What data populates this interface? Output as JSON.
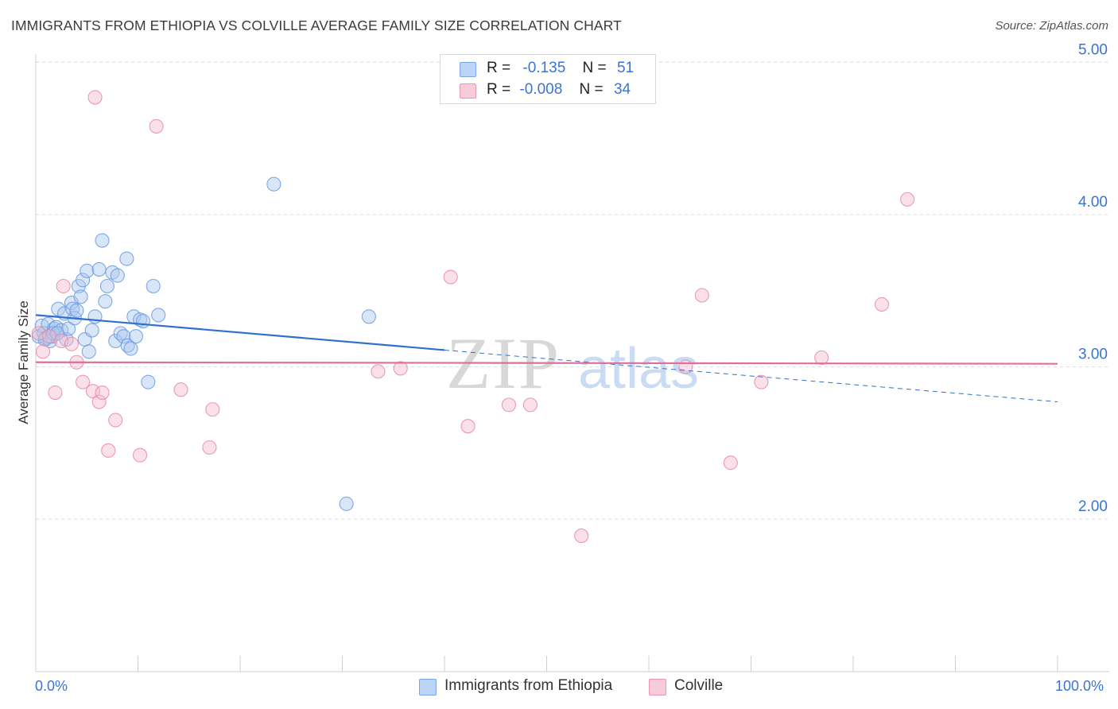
{
  "title": "IMMIGRANTS FROM ETHIOPIA VS COLVILLE AVERAGE FAMILY SIZE CORRELATION CHART",
  "source": "Source: ZipAtlas.com",
  "watermark": {
    "zip": "ZIP",
    "atlas": "atlas"
  },
  "legend": [
    {
      "r_label": "R =",
      "r_value": "-0.135",
      "n_label": "N =",
      "n_value": "51"
    },
    {
      "r_label": "R =",
      "r_value": "-0.008",
      "n_label": "N =",
      "n_value": "34"
    }
  ],
  "chart_data": {
    "type": "scatter",
    "title": "IMMIGRANTS FROM ETHIOPIA VS COLVILLE AVERAGE FAMILY SIZE CORRELATION CHART",
    "xlabel": "",
    "ylabel": "Average Family Size",
    "xlim": [
      0,
      100
    ],
    "ylim": [
      1.0,
      5.1
    ],
    "x_tick_labels": [
      "0.0%",
      "100.0%"
    ],
    "y_ticks": [
      2.0,
      3.0,
      4.0,
      5.0
    ],
    "y_tick_labels": [
      "2.00",
      "3.00",
      "4.00",
      "5.00"
    ],
    "grid": true,
    "series": [
      {
        "name": "Immigrants from Ethiopia",
        "color": "#6a9be0",
        "fill": "#aac8f0",
        "trend": {
          "x0": 0,
          "y0": 3.34,
          "x1": 40,
          "y1": 3.11,
          "dash_to_x": 100,
          "dash_to_y": 2.77
        },
        "points": [
          [
            0.3,
            3.2
          ],
          [
            0.6,
            3.27
          ],
          [
            0.8,
            3.22
          ],
          [
            1.0,
            3.19
          ],
          [
            1.2,
            3.28
          ],
          [
            1.4,
            3.17
          ],
          [
            1.6,
            3.2
          ],
          [
            1.8,
            3.25
          ],
          [
            2.0,
            3.26
          ],
          [
            2.2,
            3.38
          ],
          [
            2.5,
            3.24
          ],
          [
            2.8,
            3.35
          ],
          [
            3.0,
            3.18
          ],
          [
            3.2,
            3.25
          ],
          [
            3.5,
            3.42
          ],
          [
            3.6,
            3.38
          ],
          [
            3.8,
            3.32
          ],
          [
            4.0,
            3.37
          ],
          [
            4.2,
            3.53
          ],
          [
            4.4,
            3.46
          ],
          [
            4.6,
            3.57
          ],
          [
            4.8,
            3.18
          ],
          [
            5.0,
            3.63
          ],
          [
            5.2,
            3.1
          ],
          [
            5.5,
            3.24
          ],
          [
            5.8,
            3.33
          ],
          [
            6.2,
            3.64
          ],
          [
            6.5,
            3.83
          ],
          [
            6.8,
            3.43
          ],
          [
            7.0,
            3.53
          ],
          [
            7.5,
            3.62
          ],
          [
            7.8,
            3.17
          ],
          [
            8.0,
            3.6
          ],
          [
            8.3,
            3.22
          ],
          [
            8.6,
            3.2
          ],
          [
            8.9,
            3.71
          ],
          [
            9.0,
            3.14
          ],
          [
            9.3,
            3.12
          ],
          [
            9.6,
            3.33
          ],
          [
            9.8,
            3.2
          ],
          [
            10.2,
            3.31
          ],
          [
            10.5,
            3.3
          ],
          [
            11.0,
            2.9
          ],
          [
            11.5,
            3.53
          ],
          [
            12.0,
            3.34
          ],
          [
            23.3,
            4.2
          ],
          [
            30.4,
            2.1
          ],
          [
            32.6,
            3.33
          ],
          [
            0.9,
            3.18
          ],
          [
            1.7,
            3.22
          ],
          [
            2.1,
            3.22
          ]
        ]
      },
      {
        "name": "Colville",
        "color": "#e88aa8",
        "fill": "#f5bccf",
        "trend": {
          "x0": 0,
          "y0": 3.03,
          "x1": 100,
          "y1": 3.02
        },
        "points": [
          [
            0.3,
            3.22
          ],
          [
            0.7,
            3.1
          ],
          [
            1.3,
            3.2
          ],
          [
            1.9,
            2.83
          ],
          [
            2.5,
            3.17
          ],
          [
            2.7,
            3.53
          ],
          [
            3.5,
            3.15
          ],
          [
            4.0,
            3.03
          ],
          [
            4.6,
            2.9
          ],
          [
            5.6,
            2.84
          ],
          [
            5.8,
            4.77
          ],
          [
            6.2,
            2.77
          ],
          [
            6.5,
            2.83
          ],
          [
            7.1,
            2.45
          ],
          [
            7.8,
            2.65
          ],
          [
            10.2,
            2.42
          ],
          [
            11.8,
            4.58
          ],
          [
            14.2,
            2.85
          ],
          [
            17.0,
            2.47
          ],
          [
            17.3,
            2.72
          ],
          [
            33.5,
            2.97
          ],
          [
            35.7,
            2.99
          ],
          [
            40.6,
            3.59
          ],
          [
            42.3,
            2.61
          ],
          [
            46.3,
            2.75
          ],
          [
            48.4,
            2.75
          ],
          [
            53.4,
            1.89
          ],
          [
            63.6,
            3.0
          ],
          [
            65.2,
            3.47
          ],
          [
            68.0,
            2.37
          ],
          [
            71.0,
            2.9
          ],
          [
            76.9,
            3.06
          ],
          [
            82.8,
            3.41
          ],
          [
            85.3,
            4.1
          ]
        ]
      }
    ]
  }
}
